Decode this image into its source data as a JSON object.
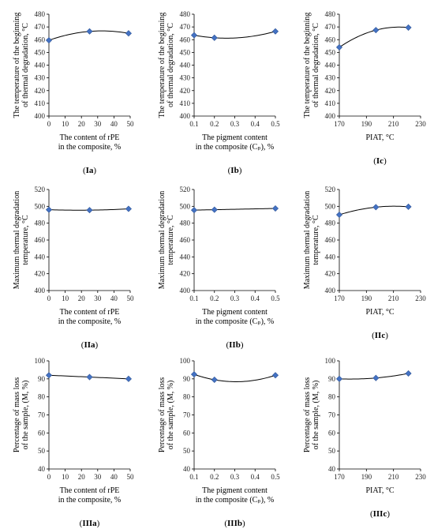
{
  "chart_data": [
    {
      "id": "Ia",
      "type": "scatter",
      "panel_label": "Ia",
      "xlabel": [
        "The content of rPE",
        "in the composite, %"
      ],
      "ylabel": [
        "The temperature of the beginning",
        "of thermal degradation, °C"
      ],
      "xlim": [
        0,
        50
      ],
      "xticks": [
        0,
        10,
        20,
        30,
        40,
        50
      ],
      "ylim": [
        400,
        480
      ],
      "yticks": [
        400,
        410,
        420,
        430,
        440,
        450,
        460,
        470,
        480
      ],
      "x": [
        0,
        25,
        49
      ],
      "y": [
        459.5,
        466.5,
        465
      ],
      "trendline": true
    },
    {
      "id": "Ib",
      "type": "scatter",
      "panel_label": "Ib",
      "xlabel": [
        "The pigment content",
        "in the composite (Cₚ), %"
      ],
      "ylabel": [
        "The temperature of the beginning",
        "of thermal degradation, °C"
      ],
      "xlim": [
        0.1,
        0.5
      ],
      "xticks": [
        0.1,
        0.2,
        0.3,
        0.4,
        0.5
      ],
      "ylim": [
        400,
        480
      ],
      "yticks": [
        400,
        410,
        420,
        430,
        440,
        450,
        460,
        470,
        480
      ],
      "x": [
        0.1,
        0.2,
        0.5
      ],
      "y": [
        463.5,
        461.5,
        466.5
      ],
      "trendline": true
    },
    {
      "id": "Ic",
      "type": "scatter",
      "panel_label": "Ic",
      "xlabel": [
        "PIAT, °C"
      ],
      "ylabel": [
        "The temperature of the beginning",
        "of thermal degradation, °C"
      ],
      "xlim": [
        170,
        230
      ],
      "xticks": [
        170,
        190,
        210,
        230
      ],
      "ylim": [
        400,
        480
      ],
      "yticks": [
        400,
        410,
        420,
        430,
        440,
        450,
        460,
        470,
        480
      ],
      "x": [
        170,
        197,
        221
      ],
      "y": [
        454,
        467.5,
        469.5
      ],
      "trendline": true
    },
    {
      "id": "IIa",
      "type": "scatter",
      "panel_label": "IIa",
      "xlabel": [
        "The content of rPE",
        "in the composite, %"
      ],
      "ylabel": [
        "Maximum thermal degradation",
        "temperature, °C"
      ],
      "xlim": [
        0,
        50
      ],
      "xticks": [
        0,
        10,
        20,
        30,
        40,
        50
      ],
      "ylim": [
        400,
        520
      ],
      "yticks": [
        400,
        420,
        440,
        460,
        480,
        500,
        520
      ],
      "x": [
        0,
        25,
        49
      ],
      "y": [
        496,
        495.5,
        497
      ],
      "trendline": true
    },
    {
      "id": "IIb",
      "type": "scatter",
      "panel_label": "IIb",
      "xlabel": [
        "The pigment content",
        "in the composite (Cₚ), %"
      ],
      "ylabel": [
        "Maximum thermal degradation",
        "temperature, °C"
      ],
      "xlim": [
        0.1,
        0.5
      ],
      "xticks": [
        0.1,
        0.2,
        0.3,
        0.4,
        0.5
      ],
      "ylim": [
        400,
        520
      ],
      "yticks": [
        400,
        420,
        440,
        460,
        480,
        500,
        520
      ],
      "x": [
        0.1,
        0.2,
        0.5
      ],
      "y": [
        495.5,
        496,
        497.5
      ],
      "trendline": true
    },
    {
      "id": "IIc",
      "type": "scatter",
      "panel_label": "IIc",
      "xlabel": [
        "PIAT, °C"
      ],
      "ylabel": [
        "Maximum thermal degradation",
        "temperature, °C"
      ],
      "xlim": [
        170,
        230
      ],
      "xticks": [
        170,
        190,
        210,
        230
      ],
      "ylim": [
        400,
        520
      ],
      "yticks": [
        400,
        420,
        440,
        460,
        480,
        500,
        520
      ],
      "x": [
        170,
        197,
        221
      ],
      "y": [
        490,
        499,
        499.5
      ],
      "trendline": true
    },
    {
      "id": "IIIa",
      "type": "scatter",
      "panel_label": "IIIa",
      "xlabel": [
        "The content of rPE",
        "in the composite, %"
      ],
      "ylabel": [
        "Percentage of mass loss",
        "of the sample, (M, %)"
      ],
      "xlim": [
        0,
        50
      ],
      "xticks": [
        0,
        10,
        20,
        30,
        40,
        50
      ],
      "ylim": [
        40,
        100
      ],
      "yticks": [
        40,
        50,
        60,
        70,
        80,
        90,
        100
      ],
      "x": [
        0,
        25,
        49
      ],
      "y": [
        92,
        91,
        90
      ],
      "trendline": true
    },
    {
      "id": "IIIb",
      "type": "scatter",
      "panel_label": "IIIb",
      "xlabel": [
        "The pigment content",
        "in the composite (Cₚ), %"
      ],
      "ylabel": [
        "Percentage of mass loss",
        "of the sample, (M, %)"
      ],
      "xlim": [
        0.1,
        0.5
      ],
      "xticks": [
        0.1,
        0.2,
        0.3,
        0.4,
        0.5
      ],
      "ylim": [
        40,
        100
      ],
      "yticks": [
        40,
        50,
        60,
        70,
        80,
        90,
        100
      ],
      "x": [
        0.1,
        0.2,
        0.5
      ],
      "y": [
        92.5,
        89.5,
        92
      ],
      "trendline": true
    },
    {
      "id": "IIIc",
      "type": "scatter",
      "panel_label": "IIIc",
      "xlabel": [
        "PIAT, °C"
      ],
      "ylabel": [
        "Percentage of mass loss",
        "of the sample, (M, %)"
      ],
      "xlim": [
        170,
        230
      ],
      "xticks": [
        170,
        190,
        210,
        230
      ],
      "ylim": [
        40,
        100
      ],
      "yticks": [
        40,
        50,
        60,
        70,
        80,
        90,
        100
      ],
      "x": [
        170,
        197,
        221
      ],
      "y": [
        90,
        90.5,
        93
      ],
      "trendline": true
    }
  ],
  "colors": {
    "marker": "#4472c4",
    "line": "#000000",
    "axis": "#000000",
    "text": "#222222"
  }
}
